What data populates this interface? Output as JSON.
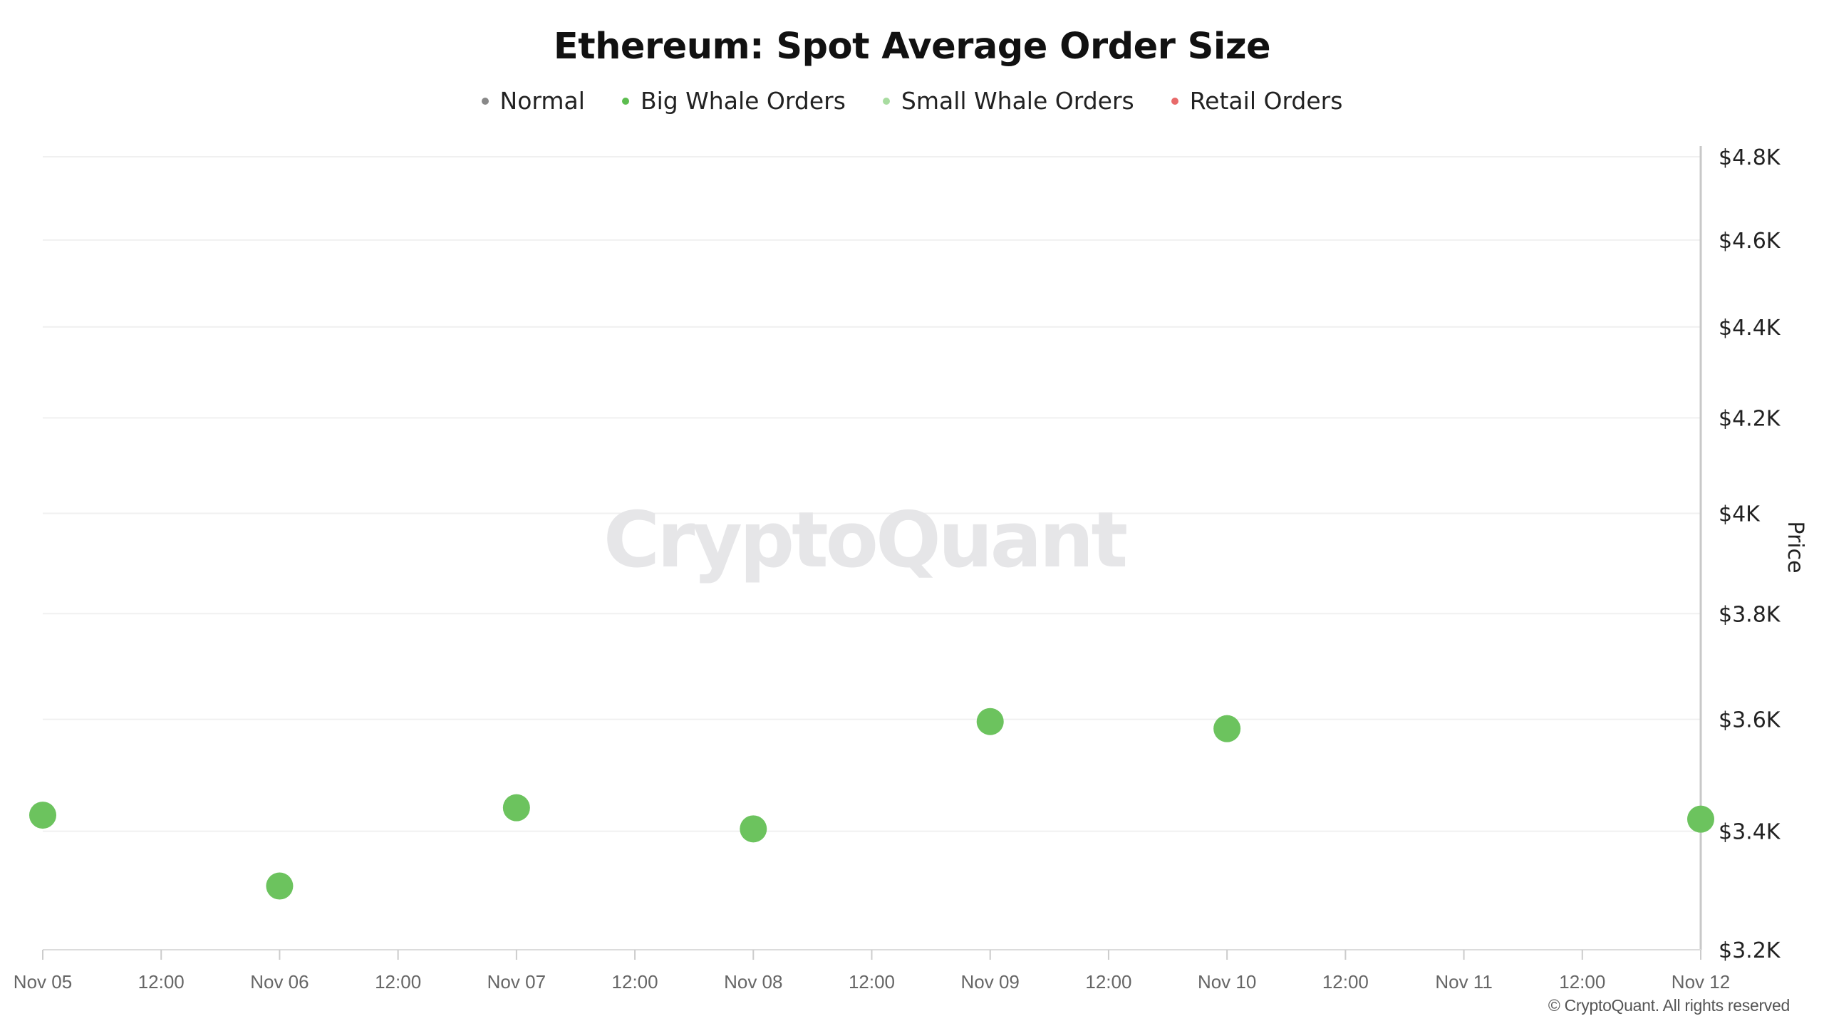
{
  "chart_data": {
    "type": "scatter",
    "title": "Ethereum: Spot Average Order Size",
    "legend": [
      {
        "name": "Normal",
        "color": "#888888"
      },
      {
        "name": "Big Whale Orders",
        "color": "#5cbd4f"
      },
      {
        "name": "Small Whale Orders",
        "color": "#a8dca0"
      },
      {
        "name": "Retail Orders",
        "color": "#e86a6a"
      }
    ],
    "legend_position": "top-center",
    "x_ticks": [
      "Nov 05",
      "12:00",
      "Nov 06",
      "12:00",
      "Nov 07",
      "12:00",
      "Nov 08",
      "12:00",
      "Nov 09",
      "12:00",
      "Nov 10",
      "12:00",
      "Nov 11",
      "12:00",
      "Nov 12"
    ],
    "y_ticks": [
      "$4.8K",
      "$4.6K",
      "$4.4K",
      "$4.2K",
      "$4K",
      "$3.8K",
      "$3.6K",
      "$3.4K",
      "$3.2K"
    ],
    "y_tick_values": [
      4800,
      4600,
      4400,
      4200,
      4000,
      3800,
      3600,
      3400,
      3200
    ],
    "ylabel": "Price",
    "ylim": [
      3200,
      4800
    ],
    "y_scale": "log",
    "y_axis_position": "right",
    "grid": true,
    "series": [
      {
        "name": "Big Whale Orders",
        "color": "#6cc35e",
        "points": [
          {
            "x": "Nov 05",
            "y": 3428
          },
          {
            "x": "Nov 06",
            "y": 3306
          },
          {
            "x": "Nov 07",
            "y": 3441
          },
          {
            "x": "Nov 08",
            "y": 3404
          },
          {
            "x": "Nov 09",
            "y": 3596
          },
          {
            "x": "Nov 10",
            "y": 3583
          },
          {
            "x": "Nov 12",
            "y": 3421
          }
        ]
      }
    ]
  },
  "watermark": "CryptoQuant",
  "copyright": "© CryptoQuant. All rights reserved"
}
